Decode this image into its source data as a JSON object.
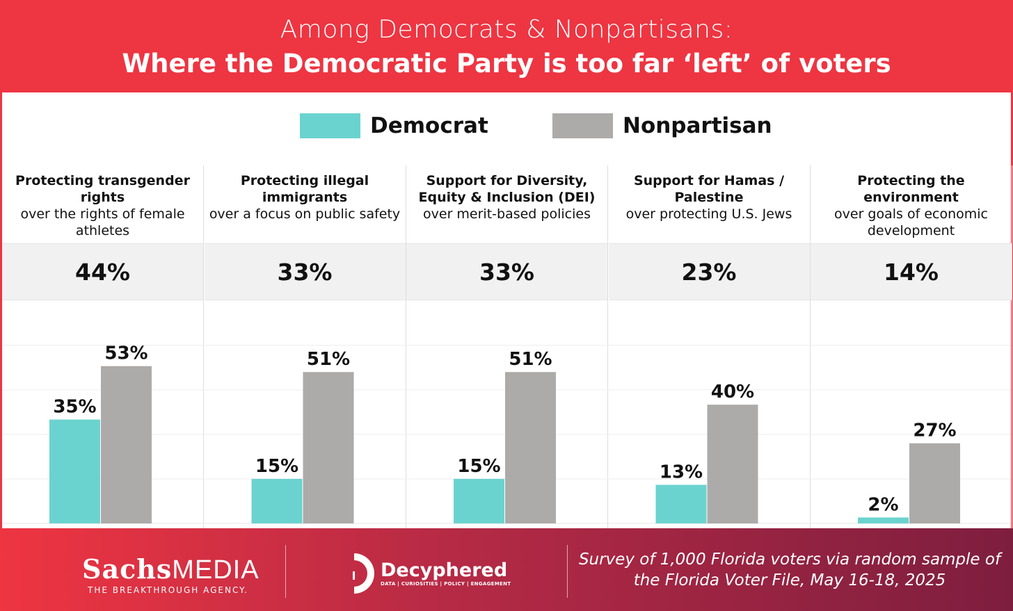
{
  "header": {
    "line1": "Among Democrats & Nonpartisans:",
    "line2": "Where the Democratic Party is too far ‘left’ of voters"
  },
  "colors": {
    "democrat": "#6bd3cf",
    "nonpartisan": "#adaaaa",
    "brand_red": "#ee3542"
  },
  "chart_data": {
    "type": "bar",
    "title": "Where the Democratic Party is too far 'left' of voters",
    "legend": [
      "Democrat",
      "Nonpartisan"
    ],
    "legend_placement": "top-center",
    "ylim": [
      0,
      75
    ],
    "grid": true,
    "categories": [
      {
        "bold": "Protecting transgender rights",
        "rest": "over the rights of female athletes",
        "overall": "44%"
      },
      {
        "bold": "Protecting illegal immigrants",
        "rest": "over a focus on public safety",
        "overall": "33%"
      },
      {
        "bold": "Support for Diversity, Equity & Inclusion (DEI)",
        "rest": "over merit-based policies",
        "overall": "33%"
      },
      {
        "bold": "Support for Hamas / Palestine",
        "rest": "over protecting U.S. Jews",
        "overall": "23%"
      },
      {
        "bold": "Protecting the environment",
        "rest": "over goals of economic development",
        "overall": "14%"
      }
    ],
    "series": [
      {
        "name": "Democrat",
        "values": [
          35,
          15,
          15,
          13,
          2
        ]
      },
      {
        "name": "Nonpartisan",
        "values": [
          53,
          51,
          51,
          40,
          27
        ]
      }
    ]
  },
  "footer": {
    "sachs_bold": "Sachs",
    "sachs_light": "MEDIA",
    "sachs_tagline": "THE BREAKTHROUGH AGENCY.",
    "decyphered_name": "Decyphered",
    "decyphered_tagline": "DATA | CURIOSITIES | POLICY | ENGAGEMENT",
    "survey_note": "Survey of 1,000 Florida voters via random sample of the Florida Voter File, May 16-18, 2025"
  }
}
